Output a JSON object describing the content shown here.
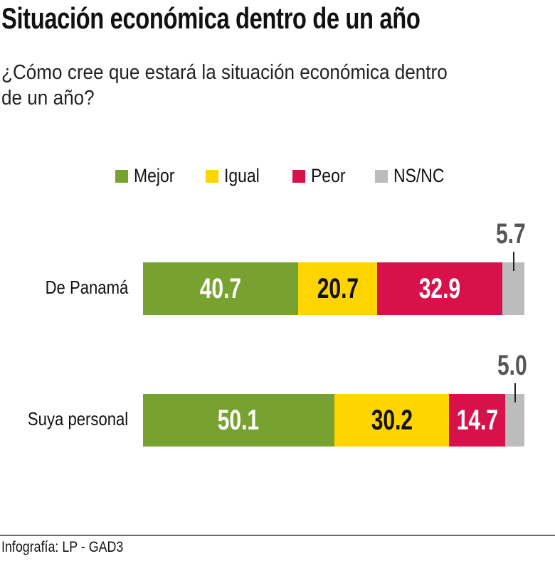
{
  "chart_data": {
    "type": "bar",
    "stacked": true,
    "orientation": "horizontal",
    "title": "Situación económica dentro de un año",
    "subtitle": "¿Cómo cree que estará la situación económica dentro de un año?",
    "legend_position": "top",
    "categories": [
      "De Panamá",
      "Suya personal"
    ],
    "series": [
      {
        "name": "Mejor",
        "color": "#78a22f",
        "label_color": "#ffffff",
        "values": [
          40.7,
          50.1
        ]
      },
      {
        "name": "Igual",
        "color": "#ffd400",
        "label_color": "#111111",
        "values": [
          20.7,
          30.2
        ]
      },
      {
        "name": "Peor",
        "color": "#d9114b",
        "label_color": "#ffffff",
        "values": [
          32.9,
          14.7
        ]
      },
      {
        "name": "NS/NC",
        "color": "#bcbcbc",
        "label_color": "#555555",
        "values": [
          5.7,
          5.0
        ]
      }
    ],
    "data_labels": [
      [
        "40.7",
        "20.7",
        "32.9",
        "5.7"
      ],
      [
        "50.1",
        "30.2",
        "14.7",
        "5.0"
      ]
    ],
    "xlim": [
      0,
      100
    ],
    "grid": false
  },
  "footer": {
    "source": "Infografía: LP - GAD3"
  }
}
